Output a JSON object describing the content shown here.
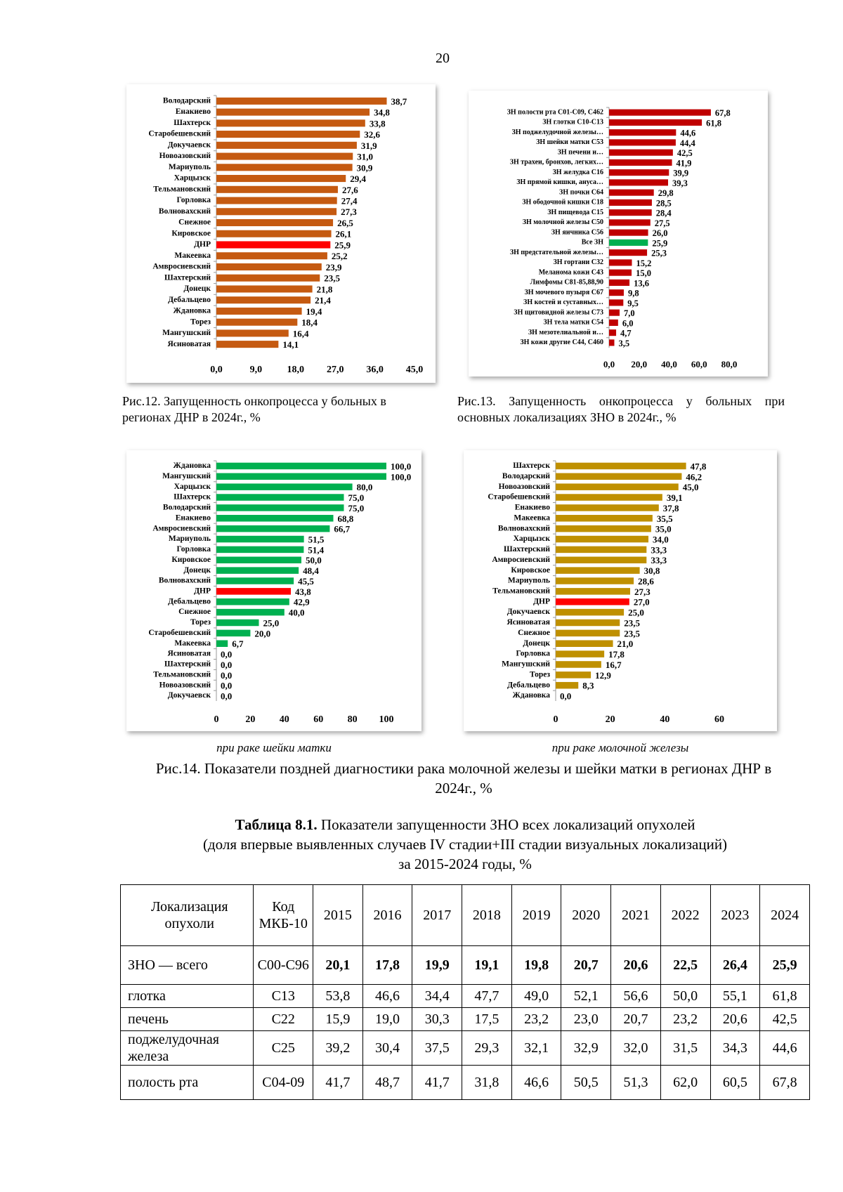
{
  "page_number": "20",
  "chart_data": [
    {
      "type": "hbar",
      "caption": "Рис.12. Запущенность онкопроцесса у больных в регионах ДНР в 2024г., %",
      "categories": [
        "Володарский",
        "Енакиево",
        "Шахтерск",
        "Старобешевский",
        "Докучаевск",
        "Новоазовский",
        "Мариуполь",
        "Харцызск",
        "Тельмановский",
        "Горловка",
        "Волновахский",
        "Снежное",
        "Кировское",
        "ДНР",
        "Макеевка",
        "Амвросиевский",
        "Шахтерский",
        "Донецк",
        "Дебальцево",
        "Ждановка",
        "Торез",
        "Мангушский",
        "Ясиноватая"
      ],
      "values": [
        38.7,
        34.8,
        33.8,
        32.6,
        31.9,
        31.0,
        30.9,
        29.4,
        27.6,
        27.4,
        27.3,
        26.5,
        26.1,
        25.9,
        25.2,
        23.9,
        23.5,
        21.8,
        21.4,
        19.4,
        18.4,
        16.4,
        14.1
      ],
      "value_labels": [
        "38,7",
        "34,8",
        "33,8",
        "32,6",
        "31,9",
        "31,0",
        "30,9",
        "29,4",
        "27,6",
        "27,4",
        "27,3",
        "26,5",
        "26,1",
        "25,9",
        "25,2",
        "23,9",
        "23,5",
        "21,8",
        "21,4",
        "19,4",
        "18,4",
        "16,4",
        "14,1"
      ],
      "colors": [
        "#c55a11",
        "#c55a11",
        "#c55a11",
        "#c55a11",
        "#c55a11",
        "#c55a11",
        "#c55a11",
        "#c55a11",
        "#c55a11",
        "#c55a11",
        "#c55a11",
        "#c55a11",
        "#c55a11",
        "#ff0000",
        "#c55a11",
        "#c55a11",
        "#c55a11",
        "#c55a11",
        "#c55a11",
        "#c55a11",
        "#c55a11",
        "#c55a11",
        "#c55a11"
      ],
      "xlim": [
        0,
        45
      ],
      "xticks": [
        {
          "value": 0,
          "label": "0,0"
        },
        {
          "value": 9,
          "label": "9,0"
        },
        {
          "value": 18,
          "label": "18,0"
        },
        {
          "value": 27,
          "label": "27,0"
        },
        {
          "value": 36,
          "label": "36,0"
        },
        {
          "value": 45,
          "label": "45,0"
        }
      ]
    },
    {
      "type": "hbar",
      "caption": "Рис.13. Запущенность онкопроцесса у больных при основных локализациях ЗНО в 2024г., %",
      "categories": [
        "ЗН полости рта С01-С09, С462",
        "ЗН глотки С10-С13",
        "ЗН поджелудочной железы…",
        "ЗН шейки матки С53",
        "ЗН печени и…",
        "ЗН трахеи, бронхов, легких…",
        "ЗН желудка С16",
        "ЗН прямой кишки, ануса…",
        "ЗН почки С64",
        "ЗН ободочной кишки С18",
        "ЗН пищевода С15",
        "ЗН молочной железы С50",
        "ЗН яичника С56",
        "Все ЗН",
        "ЗН предстательной железы…",
        "ЗН гортани С32",
        "Меланома кожи С43",
        "Лимфомы С81-85,88,90",
        "ЗН мочевого пузыря С67",
        "ЗН костей и суставных…",
        "ЗН щитовидной железы С73",
        "ЗН тела матки С54",
        "ЗН мезотелиальной и…",
        "ЗН  кожи другие С44, С460"
      ],
      "values": [
        67.8,
        61.8,
        44.6,
        44.4,
        42.5,
        41.9,
        39.9,
        39.3,
        29.8,
        28.5,
        28.4,
        27.5,
        26.0,
        25.9,
        25.3,
        15.2,
        15.0,
        13.6,
        9.8,
        9.5,
        7.0,
        6.0,
        4.7,
        3.5
      ],
      "value_labels": [
        "67,8",
        "61,8",
        "44,6",
        "44,4",
        "42,5",
        "41,9",
        "39,9",
        "39,3",
        "29,8",
        "28,5",
        "28,4",
        "27,5",
        "26,0",
        "25,9",
        "25,3",
        "15,2",
        "15,0",
        "13,6",
        "9,8",
        "9,5",
        "7,0",
        "6,0",
        "4,7",
        "3,5"
      ],
      "colors": [
        "#c00000",
        "#c00000",
        "#c00000",
        "#c00000",
        "#c00000",
        "#c00000",
        "#c00000",
        "#c00000",
        "#c00000",
        "#c00000",
        "#c00000",
        "#c00000",
        "#c00000",
        "#00b050",
        "#c00000",
        "#c00000",
        "#c00000",
        "#c00000",
        "#c00000",
        "#c00000",
        "#c00000",
        "#c00000",
        "#c00000",
        "#c00000"
      ],
      "xlim": [
        0,
        80
      ],
      "xticks": [
        {
          "value": 0,
          "label": "0,0"
        },
        {
          "value": 20,
          "label": "20,0"
        },
        {
          "value": 40,
          "label": "40,0"
        },
        {
          "value": 60,
          "label": "60,0"
        },
        {
          "value": 80,
          "label": "80,0"
        }
      ]
    },
    {
      "type": "hbar",
      "subtitle": "при раке шейки матки",
      "categories": [
        "Ждановка",
        "Мангушский",
        "Харцызск",
        "Шахтерск",
        "Володарский",
        "Енакиево",
        "Амвросиевский",
        "Мариуполь",
        "Горловка",
        "Кировское",
        "Донецк",
        "Волновахский",
        "ДНР",
        "Дебальцево",
        "Снежное",
        "Торез",
        "Старобешевский",
        "Макеевка",
        "Ясиноватая",
        "Шахтерский",
        "Тельмановский",
        "Новоазовский",
        "Докучаевск"
      ],
      "values": [
        100.0,
        100.0,
        80.0,
        75.0,
        75.0,
        68.8,
        66.7,
        51.5,
        51.4,
        50.0,
        48.4,
        45.5,
        43.8,
        42.9,
        40.0,
        25.0,
        20.0,
        6.7,
        0.0,
        0.0,
        0.0,
        0.0,
        0.0
      ],
      "value_labels": [
        "100,0",
        "100,0",
        "80,0",
        "75,0",
        "75,0",
        "68,8",
        "66,7",
        "51,5",
        "51,4",
        "50,0",
        "48,4",
        "45,5",
        "43,8",
        "42,9",
        "40,0",
        "25,0",
        "20,0",
        "6,7",
        "0,0",
        "0,0",
        "0,0",
        "0,0",
        "0,0"
      ],
      "colors": [
        "#00b050",
        "#00b050",
        "#00b050",
        "#00b050",
        "#00b050",
        "#00b050",
        "#00b050",
        "#00b050",
        "#00b050",
        "#00b050",
        "#00b050",
        "#00b050",
        "#ff0000",
        "#00b050",
        "#00b050",
        "#00b050",
        "#00b050",
        "#00b050",
        "#00b050",
        "#00b050",
        "#00b050",
        "#00b050",
        "#00b050"
      ],
      "xlim": [
        0,
        100
      ],
      "xticks": [
        0,
        20,
        40,
        60,
        80,
        100
      ]
    },
    {
      "type": "hbar",
      "subtitle": "при раке молочной железы",
      "categories": [
        "Шахтерск",
        "Володарский",
        "Новоазовский",
        "Старобешевский",
        "Енакиево",
        "Макеевка",
        "Волновахский",
        "Харцызск",
        "Шахтерский",
        "Амвросиевский",
        "Кировское",
        "Мариуполь",
        "Тельмановский",
        "ДНР",
        "Докучаевск",
        "Ясиноватая",
        "Снежное",
        "Донецк",
        "Горловка",
        "Мангушский",
        "Торез",
        "Дебальцево",
        "Ждановка"
      ],
      "values": [
        47.8,
        46.2,
        45.0,
        39.1,
        37.8,
        35.5,
        35.0,
        34.0,
        33.3,
        33.3,
        30.8,
        28.6,
        27.3,
        27.0,
        25.0,
        23.5,
        23.5,
        21.0,
        17.8,
        16.7,
        12.9,
        8.3,
        0.0
      ],
      "value_labels": [
        "47,8",
        "46,2",
        "45,0",
        "39,1",
        "37,8",
        "35,5",
        "35,0",
        "34,0",
        "33,3",
        "33,3",
        "30,8",
        "28,6",
        "27,3",
        "27,0",
        "25,0",
        "23,5",
        "23,5",
        "21,0",
        "17,8",
        "16,7",
        "12,9",
        "8,3",
        "0,0"
      ],
      "colors": [
        "#bf9000",
        "#bf9000",
        "#bf9000",
        "#bf9000",
        "#bf9000",
        "#bf9000",
        "#bf9000",
        "#bf9000",
        "#bf9000",
        "#bf9000",
        "#bf9000",
        "#bf9000",
        "#bf9000",
        "#ff0000",
        "#bf9000",
        "#bf9000",
        "#bf9000",
        "#bf9000",
        "#bf9000",
        "#bf9000",
        "#bf9000",
        "#bf9000",
        "#bf9000"
      ],
      "xlim": [
        0,
        60
      ],
      "xticks": [
        0,
        20,
        40,
        60
      ]
    }
  ],
  "figure_caption": "Рис.14.  Показатели поздней диагностики рака молочной железы и шейки матки в регионах ДНР в 2024г., %",
  "table_title": {
    "label": "Таблица 8.1.",
    "lines": [
      "Показатели запущенности ЗНО всех локализаций опухолей",
      "(доля впервые выявленных случаев IV стадии+III стадии визуальных локализаций)",
      "за 2015-2024 годы, %"
    ]
  },
  "table": {
    "header": [
      "Локализация опухоли",
      "Код МКБ-10",
      "2015",
      "2016",
      "2017",
      "2018",
      "2019",
      "2020",
      "2021",
      "2022",
      "2023",
      "2024"
    ],
    "rows": [
      [
        "ЗНО — всего",
        "С00-С96",
        "20,1",
        "17,8",
        "19,9",
        "19,1",
        "19,8",
        "20,7",
        "20,6",
        "22,5",
        "26,4",
        "25,9"
      ],
      [
        "глотка",
        "С13",
        "53,8",
        "46,6",
        "34,4",
        "47,7",
        "49,0",
        "52,1",
        "56,6",
        "50,0",
        "55,1",
        "61,8"
      ],
      [
        "печень",
        "С22",
        "15,9",
        "19,0",
        "30,3",
        "17,5",
        "23,2",
        "23,0",
        "20,7",
        "23,2",
        "20,6",
        "42,5"
      ],
      [
        "поджелудочная железа",
        "С25",
        "39,2",
        "30,4",
        "37,5",
        "29,3",
        "32,1",
        "32,9",
        "32,0",
        "31,5",
        "34,3",
        "44,6"
      ],
      [
        "полость рта",
        "С04-09",
        "41,7",
        "48,7",
        "41,7",
        "31,8",
        "46,6",
        "50,5",
        "51,3",
        "62,0",
        "60,5",
        "67,8"
      ]
    ]
  }
}
